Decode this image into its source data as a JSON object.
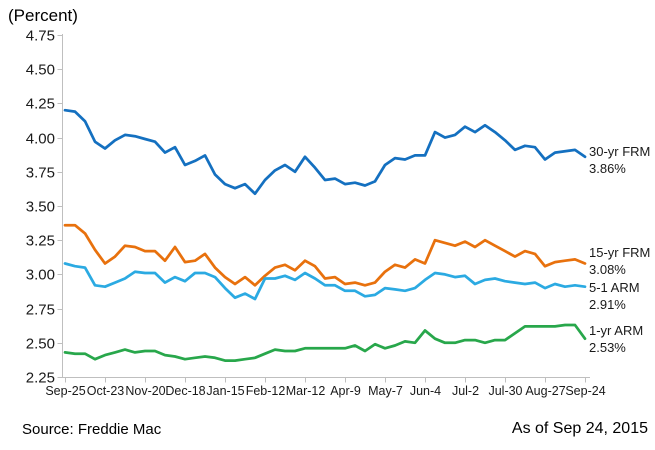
{
  "header": {
    "y_axis_title": "(Percent)"
  },
  "footer": {
    "source": "Source: Freddie Mac",
    "as_of": "As of Sep 24, 2015"
  },
  "chart_data": {
    "type": "line",
    "title": "",
    "ylabel": "(Percent)",
    "xlabel": "",
    "ylim": [
      2.25,
      4.75
    ],
    "ytick_step": 0.25,
    "y_tick_labels": [
      "2.25",
      "2.50",
      "2.75",
      "3.00",
      "3.25",
      "3.50",
      "3.75",
      "4.00",
      "4.25",
      "4.50",
      "4.75"
    ],
    "x_tick_labels": [
      "Sep-25",
      "Oct-23",
      "Nov-20",
      "Dec-18",
      "Jan-15",
      "Feb-12",
      "Mar-12",
      "Apr-9",
      "May-7",
      "Jun-4",
      "Jul-2",
      "Jul-30",
      "Aug-27",
      "Sep-24"
    ],
    "x_tick_every": 4,
    "points_per_series": 53,
    "grid": false,
    "legend_position": "right-of-line-ends",
    "axis_color": "#bfbfbf",
    "tick_label_color": "#1a1a1a",
    "series": [
      {
        "name": "30-yr FRM",
        "end_label": "3.86%",
        "color": "#1470c0",
        "values": [
          4.2,
          4.19,
          4.12,
          3.97,
          3.92,
          3.98,
          4.02,
          4.01,
          3.99,
          3.97,
          3.89,
          3.93,
          3.8,
          3.83,
          3.87,
          3.73,
          3.66,
          3.63,
          3.66,
          3.59,
          3.69,
          3.76,
          3.8,
          3.75,
          3.86,
          3.78,
          3.69,
          3.7,
          3.66,
          3.67,
          3.65,
          3.68,
          3.8,
          3.85,
          3.84,
          3.87,
          3.87,
          4.04,
          4.0,
          4.02,
          4.08,
          4.04,
          4.09,
          4.04,
          3.98,
          3.91,
          3.94,
          3.93,
          3.84,
          3.89,
          3.9,
          3.91,
          3.86
        ]
      },
      {
        "name": "15-yr FRM",
        "end_label": "3.08%",
        "color": "#e8710d",
        "values": [
          3.36,
          3.36,
          3.3,
          3.18,
          3.08,
          3.13,
          3.21,
          3.2,
          3.17,
          3.17,
          3.1,
          3.2,
          3.09,
          3.1,
          3.15,
          3.05,
          2.98,
          2.93,
          2.98,
          2.92,
          2.99,
          3.05,
          3.07,
          3.03,
          3.1,
          3.06,
          2.97,
          2.98,
          2.93,
          2.94,
          2.92,
          2.94,
          3.02,
          3.07,
          3.05,
          3.11,
          3.08,
          3.25,
          3.23,
          3.21,
          3.24,
          3.2,
          3.25,
          3.21,
          3.17,
          3.13,
          3.17,
          3.15,
          3.06,
          3.09,
          3.1,
          3.11,
          3.08
        ]
      },
      {
        "name": "5-1 ARM",
        "end_label": "2.91%",
        "color": "#2baae2",
        "values": [
          3.08,
          3.06,
          3.05,
          2.92,
          2.91,
          2.94,
          2.97,
          3.02,
          3.01,
          3.01,
          2.94,
          2.98,
          2.95,
          3.01,
          3.01,
          2.98,
          2.9,
          2.83,
          2.86,
          2.82,
          2.97,
          2.97,
          2.99,
          2.96,
          3.01,
          2.97,
          2.92,
          2.92,
          2.88,
          2.88,
          2.84,
          2.85,
          2.9,
          2.89,
          2.88,
          2.9,
          2.96,
          3.01,
          3.0,
          2.98,
          2.99,
          2.93,
          2.96,
          2.97,
          2.95,
          2.94,
          2.93,
          2.94,
          2.9,
          2.93,
          2.91,
          2.92,
          2.91
        ]
      },
      {
        "name": "1-yr ARM",
        "end_label": "2.53%",
        "color": "#28a74b",
        "values": [
          2.43,
          2.42,
          2.42,
          2.38,
          2.41,
          2.43,
          2.45,
          2.43,
          2.44,
          2.44,
          2.41,
          2.4,
          2.38,
          2.39,
          2.4,
          2.39,
          2.37,
          2.37,
          2.38,
          2.39,
          2.42,
          2.45,
          2.44,
          2.44,
          2.46,
          2.46,
          2.46,
          2.46,
          2.46,
          2.48,
          2.44,
          2.49,
          2.46,
          2.48,
          2.51,
          2.5,
          2.59,
          2.53,
          2.5,
          2.5,
          2.52,
          2.52,
          2.5,
          2.52,
          2.52,
          2.57,
          2.62,
          2.62,
          2.62,
          2.62,
          2.63,
          2.63,
          2.53
        ]
      }
    ]
  }
}
